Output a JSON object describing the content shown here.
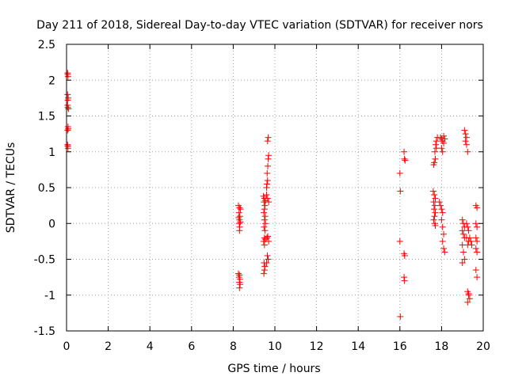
{
  "chart_data": {
    "type": "scatter",
    "title": "Day 211 of 2018, Sidereal Day-to-day VTEC variation (SDTVAR) for receiver nors",
    "xlabel": "GPS time / hours",
    "ylabel": "SDTVAR / TECUs",
    "xlim": [
      0,
      20
    ],
    "ylim": [
      -1.5,
      2.5
    ],
    "xticks": [
      0,
      2,
      4,
      6,
      8,
      10,
      12,
      14,
      16,
      18,
      20
    ],
    "yticks": [
      -1.5,
      -1,
      -0.5,
      0,
      0.5,
      1,
      1.5,
      2,
      2.5
    ],
    "xtick_labels": [
      "0",
      "2",
      "4",
      "6",
      "8",
      "10",
      "12",
      "14",
      "16",
      "18",
      "20"
    ],
    "ytick_labels": [
      "-1.5",
      "-1",
      "-0.5",
      "0",
      "0.5",
      "1",
      "1.5",
      "2",
      "2.5"
    ],
    "grid": true,
    "marker": "+",
    "marker_color": "#ff0000",
    "series": [
      {
        "name": "SDTVAR",
        "points": [
          [
            0.05,
            2.1
          ],
          [
            0.07,
            2.05
          ],
          [
            0.06,
            2.08
          ],
          [
            0.05,
            1.8
          ],
          [
            0.08,
            1.75
          ],
          [
            0.06,
            1.72
          ],
          [
            0.05,
            1.65
          ],
          [
            0.09,
            1.6
          ],
          [
            0.06,
            1.62
          ],
          [
            0.07,
            1.35
          ],
          [
            0.05,
            1.3
          ],
          [
            0.08,
            1.32
          ],
          [
            0.05,
            1.1
          ],
          [
            0.07,
            1.05
          ],
          [
            0.06,
            1.08
          ],
          [
            8.25,
            0.25
          ],
          [
            8.3,
            0.22
          ],
          [
            8.35,
            0.2
          ],
          [
            8.28,
            0.15
          ],
          [
            8.32,
            0.1
          ],
          [
            8.26,
            0.08
          ],
          [
            8.3,
            0.05
          ],
          [
            8.34,
            0.02
          ],
          [
            8.29,
            0.0
          ],
          [
            8.31,
            -0.05
          ],
          [
            8.3,
            -0.1
          ],
          [
            8.25,
            -0.7
          ],
          [
            8.3,
            -0.72
          ],
          [
            8.28,
            -0.75
          ],
          [
            8.32,
            -0.78
          ],
          [
            8.3,
            -0.82
          ],
          [
            8.33,
            -0.85
          ],
          [
            8.3,
            -0.9
          ],
          [
            9.45,
            0.38
          ],
          [
            9.5,
            0.35
          ],
          [
            9.55,
            0.32
          ],
          [
            9.48,
            0.3
          ],
          [
            9.52,
            0.25
          ],
          [
            9.5,
            0.2
          ],
          [
            9.47,
            0.15
          ],
          [
            9.53,
            0.1
          ],
          [
            9.5,
            0.05
          ],
          [
            9.55,
            0.0
          ],
          [
            9.48,
            -0.05
          ],
          [
            9.52,
            -0.1
          ],
          [
            9.5,
            -0.2
          ],
          [
            9.46,
            -0.25
          ],
          [
            9.54,
            -0.22
          ],
          [
            9.5,
            -0.3
          ],
          [
            9.48,
            -0.55
          ],
          [
            9.52,
            -0.6
          ],
          [
            9.5,
            -0.65
          ],
          [
            9.47,
            -0.7
          ],
          [
            9.6,
            0.5
          ],
          [
            9.62,
            0.55
          ],
          [
            9.65,
            0.6
          ],
          [
            9.63,
            0.7
          ],
          [
            9.66,
            0.8
          ],
          [
            9.68,
            0.9
          ],
          [
            9.7,
            0.95
          ],
          [
            9.65,
            1.15
          ],
          [
            9.68,
            1.2
          ],
          [
            9.6,
            0.4
          ],
          [
            9.65,
            0.35
          ],
          [
            9.7,
            0.3
          ],
          [
            9.62,
            -0.2
          ],
          [
            9.66,
            -0.18
          ],
          [
            9.7,
            -0.25
          ],
          [
            9.64,
            -0.45
          ],
          [
            9.68,
            -0.5
          ],
          [
            9.6,
            -0.55
          ],
          [
            16.0,
            0.7
          ],
          [
            16.02,
            0.45
          ],
          [
            16.0,
            -0.25
          ],
          [
            16.02,
            -1.3
          ],
          [
            16.2,
            1.0
          ],
          [
            16.22,
            0.9
          ],
          [
            16.25,
            0.88
          ],
          [
            16.2,
            -0.42
          ],
          [
            16.23,
            -0.45
          ],
          [
            16.2,
            -0.75
          ],
          [
            16.22,
            -0.8
          ],
          [
            17.6,
            0.45
          ],
          [
            17.65,
            0.4
          ],
          [
            17.7,
            0.35
          ],
          [
            17.62,
            0.3
          ],
          [
            17.68,
            0.25
          ],
          [
            17.64,
            0.2
          ],
          [
            17.7,
            0.15
          ],
          [
            17.66,
            0.1
          ],
          [
            17.62,
            0.05
          ],
          [
            17.68,
            0.0
          ],
          [
            17.7,
            -0.03
          ],
          [
            17.65,
            0.85
          ],
          [
            17.7,
            0.9
          ],
          [
            17.62,
            0.82
          ],
          [
            17.68,
            1.0
          ],
          [
            17.72,
            1.1
          ],
          [
            17.75,
            1.15
          ],
          [
            17.8,
            1.2
          ],
          [
            17.75,
            1.05
          ],
          [
            17.9,
            0.3
          ],
          [
            17.95,
            0.25
          ],
          [
            18.0,
            0.2
          ],
          [
            18.05,
            0.15
          ],
          [
            18.0,
            0.05
          ],
          [
            18.05,
            -0.05
          ],
          [
            18.1,
            -0.15
          ],
          [
            18.05,
            -0.25
          ],
          [
            18.1,
            -0.35
          ],
          [
            18.15,
            -0.4
          ],
          [
            17.95,
            1.2
          ],
          [
            18.0,
            1.18
          ],
          [
            18.05,
            1.15
          ],
          [
            18.1,
            1.12
          ],
          [
            18.15,
            1.18
          ],
          [
            18.0,
            1.05
          ],
          [
            18.05,
            1.0
          ],
          [
            18.1,
            1.22
          ],
          [
            19.0,
            0.05
          ],
          [
            19.05,
            0.0
          ],
          [
            19.1,
            -0.05
          ],
          [
            19.0,
            -0.1
          ],
          [
            19.05,
            -0.15
          ],
          [
            19.1,
            -0.2
          ],
          [
            19.0,
            -0.3
          ],
          [
            19.05,
            -0.4
          ],
          [
            19.1,
            -0.5
          ],
          [
            19.0,
            -0.55
          ],
          [
            19.1,
            1.3
          ],
          [
            19.15,
            1.25
          ],
          [
            19.2,
            1.2
          ],
          [
            19.15,
            1.15
          ],
          [
            19.2,
            1.1
          ],
          [
            19.25,
            1.0
          ],
          [
            19.2,
            0.0
          ],
          [
            19.25,
            -0.05
          ],
          [
            19.3,
            -0.1
          ],
          [
            19.2,
            -0.2
          ],
          [
            19.25,
            -0.3
          ],
          [
            19.3,
            -0.25
          ],
          [
            19.35,
            -0.2
          ],
          [
            19.4,
            -0.25
          ],
          [
            19.45,
            -0.3
          ],
          [
            19.25,
            -0.95
          ],
          [
            19.3,
            -1.0
          ],
          [
            19.35,
            -1.05
          ],
          [
            19.25,
            -1.1
          ],
          [
            19.3,
            -0.98
          ],
          [
            19.65,
            0.25
          ],
          [
            19.7,
            0.22
          ],
          [
            19.65,
            0.0
          ],
          [
            19.7,
            -0.05
          ],
          [
            19.65,
            -0.2
          ],
          [
            19.7,
            -0.25
          ],
          [
            19.65,
            -0.35
          ],
          [
            19.7,
            -0.4
          ],
          [
            19.65,
            -0.65
          ],
          [
            19.7,
            -0.75
          ]
        ]
      }
    ]
  }
}
